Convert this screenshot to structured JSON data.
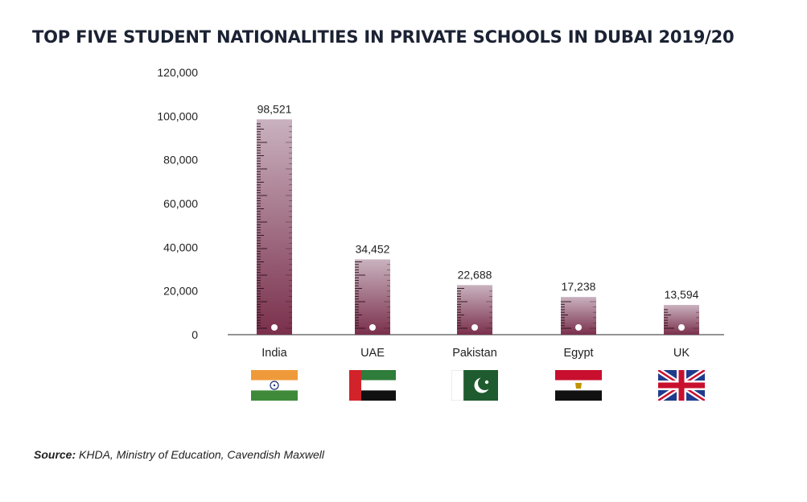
{
  "chart_data": {
    "type": "bar",
    "title": "TOP FIVE STUDENT NATIONALITIES IN PRIVATE SCHOOLS IN DUBAI 2019/20",
    "categories": [
      "India",
      "UAE",
      "Pakistan",
      "Egypt",
      "UK"
    ],
    "values": [
      98521,
      34452,
      22688,
      17238,
      13594
    ],
    "value_labels": [
      "98,521",
      "34,452",
      "22,688",
      "17,238",
      "13,594"
    ],
    "yticks": [
      0,
      20000,
      40000,
      60000,
      80000,
      100000,
      120000
    ],
    "ytick_labels": [
      "0",
      "20,000",
      "40,000",
      "60,000",
      "80,000",
      "100,000",
      "120,000"
    ],
    "ylim": [
      0,
      120000
    ],
    "xlabel": "",
    "ylabel": "",
    "grid": false,
    "bar_style": "ruler",
    "colors": {
      "bar_top": "#c9b2bf",
      "bar_bottom": "#7a2f4b",
      "tick": "#2a0f1b",
      "axis": "#4a4a4a",
      "title": "#1b2233"
    },
    "flags": [
      "flag-india-icon",
      "flag-uae-icon",
      "flag-pakistan-icon",
      "flag-egypt-icon",
      "flag-uk-icon"
    ]
  },
  "source": {
    "label": "Source:",
    "text": " KHDA, Ministry of Education, Cavendish Maxwell"
  }
}
